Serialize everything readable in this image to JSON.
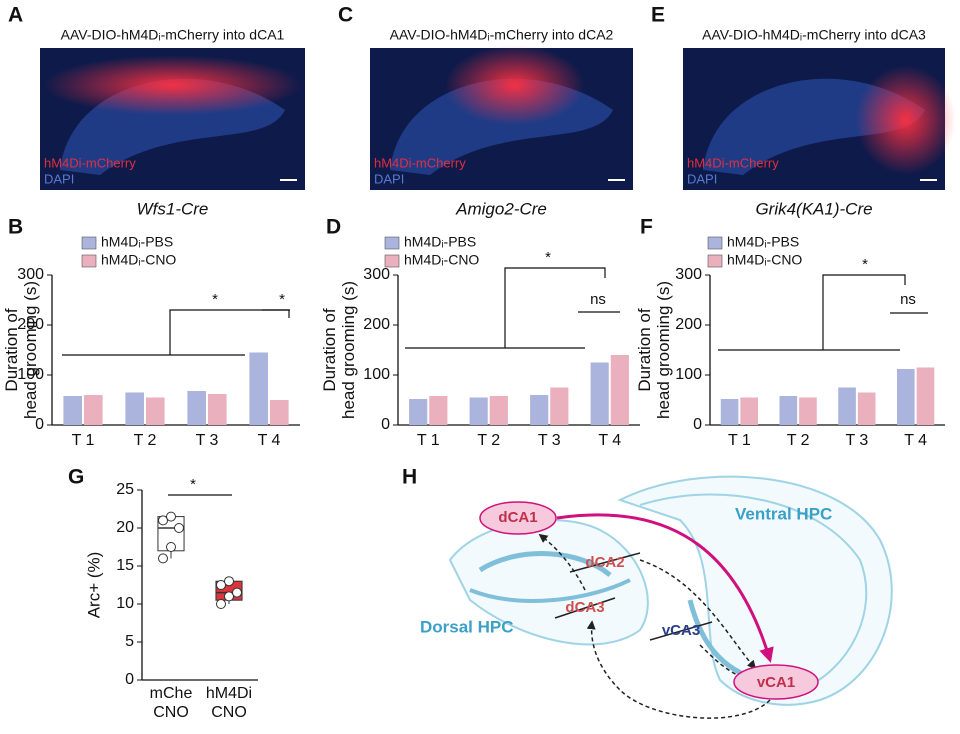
{
  "images": [
    {
      "letter": "A",
      "title": "AAV-DIO-hM4Dᵢ-mCherry into dCA1",
      "marker": "hM4Di-mCherry",
      "stain": "DAPI",
      "genotype": "Wfs1-Cre"
    },
    {
      "letter": "C",
      "title": "AAV-DIO-hM4Dᵢ-mCherry into dCA2",
      "marker": "hM4Di-mCherry",
      "stain": "DAPI",
      "genotype": "Amigo2-Cre"
    },
    {
      "letter": "E",
      "title": "AAV-DIO-hM4Dᵢ-mCherry into dCA3",
      "marker": "hM4Di-mCherry",
      "stain": "DAPI",
      "genotype": "Grik4(KA1)-Cre"
    }
  ],
  "chart_data": [
    {
      "type": "bar",
      "letter": "B",
      "ylabel": [
        "Duration of",
        "head grooming (s)"
      ],
      "categories": [
        "T 1",
        "T 2",
        "T 3",
        "T 4"
      ],
      "series": [
        {
          "name": "hM4Dᵢ-PBS",
          "color": "#aab4dd",
          "values": [
            58,
            65,
            68,
            145
          ]
        },
        {
          "name": "hM4Dᵢ-CNO",
          "color": "#eab0bd",
          "values": [
            60,
            55,
            62,
            50
          ]
        }
      ],
      "ylim": [
        0,
        300
      ],
      "yticks": [
        0,
        100,
        200,
        300
      ],
      "annotations": [
        "*",
        "*"
      ]
    },
    {
      "type": "bar",
      "letter": "D",
      "ylabel": [
        "Duration of",
        "head grooming (s)"
      ],
      "categories": [
        "T 1",
        "T 2",
        "T 3",
        "T 4"
      ],
      "series": [
        {
          "name": "hM4Dᵢ-PBS",
          "color": "#aab4dd",
          "values": [
            52,
            55,
            60,
            125
          ]
        },
        {
          "name": "hM4Dᵢ-CNO",
          "color": "#eab0bd",
          "values": [
            58,
            58,
            75,
            140
          ]
        }
      ],
      "ylim": [
        0,
        300
      ],
      "yticks": [
        0,
        100,
        200,
        300
      ],
      "annotations": [
        "*",
        "ns"
      ]
    },
    {
      "type": "bar",
      "letter": "F",
      "ylabel": [
        "Duration of",
        "head grooming (s)"
      ],
      "categories": [
        "T 1",
        "T 2",
        "T 3",
        "T 4"
      ],
      "series": [
        {
          "name": "hM4Dᵢ-PBS",
          "color": "#aab4dd",
          "values": [
            52,
            58,
            75,
            112
          ]
        },
        {
          "name": "hM4Dᵢ-CNO",
          "color": "#eab0bd",
          "values": [
            55,
            55,
            65,
            115
          ]
        }
      ],
      "ylim": [
        0,
        300
      ],
      "yticks": [
        0,
        100,
        200,
        300
      ],
      "annotations": [
        "*",
        "ns"
      ]
    },
    {
      "type": "box",
      "letter": "G",
      "ylabel": [
        "Arc+ (%)"
      ],
      "categories": [
        [
          "mChe",
          "CNO"
        ],
        [
          "hM4Di",
          "CNO"
        ]
      ],
      "boxes": [
        {
          "min": 16,
          "q1": 17,
          "median": 20,
          "q3": 21.5,
          "max": 21.7,
          "color": "#ffffff"
        },
        {
          "min": 10,
          "q1": 10.5,
          "median": 11.5,
          "q3": 13,
          "max": 13.3,
          "color": "#d9363e"
        }
      ],
      "points": [
        [
          16,
          17.5,
          20,
          21,
          21.5
        ],
        [
          10,
          11,
          11.5,
          12.5,
          13
        ]
      ],
      "ylim": [
        0,
        25
      ],
      "yticks": [
        0,
        5,
        10,
        15,
        20,
        25
      ],
      "annotations": [
        "*"
      ]
    }
  ],
  "diagram": {
    "letter": "H",
    "regions": [
      "Ventral HPC",
      "Dorsal HPC"
    ],
    "nodes": [
      "dCA1",
      "dCA2",
      "dCA3",
      "vCA3",
      "vCA1"
    ]
  }
}
